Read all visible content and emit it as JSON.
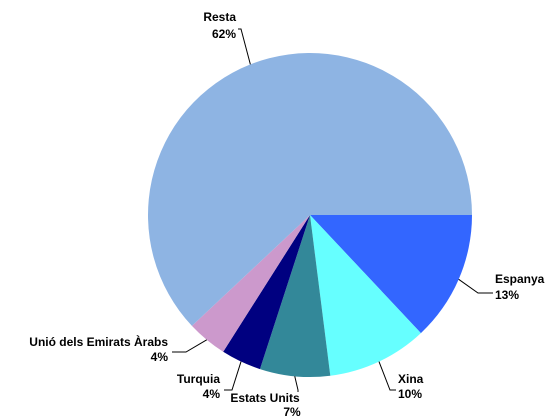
{
  "chart_data": {
    "type": "pie",
    "categories": [
      "Espanya",
      "Xina",
      "Estats Units",
      "Turquia",
      "Unió dels Emirats Àrabs",
      "Resta"
    ],
    "values": [
      13,
      10,
      7,
      4,
      4,
      62
    ],
    "value_labels": [
      "13%",
      "10%",
      "7%",
      "4%",
      "4%",
      "62%"
    ],
    "colors": [
      "#3366ff",
      "#66ffff",
      "#338899",
      "#000080",
      "#cc99cc",
      "#8eb4e3"
    ]
  }
}
